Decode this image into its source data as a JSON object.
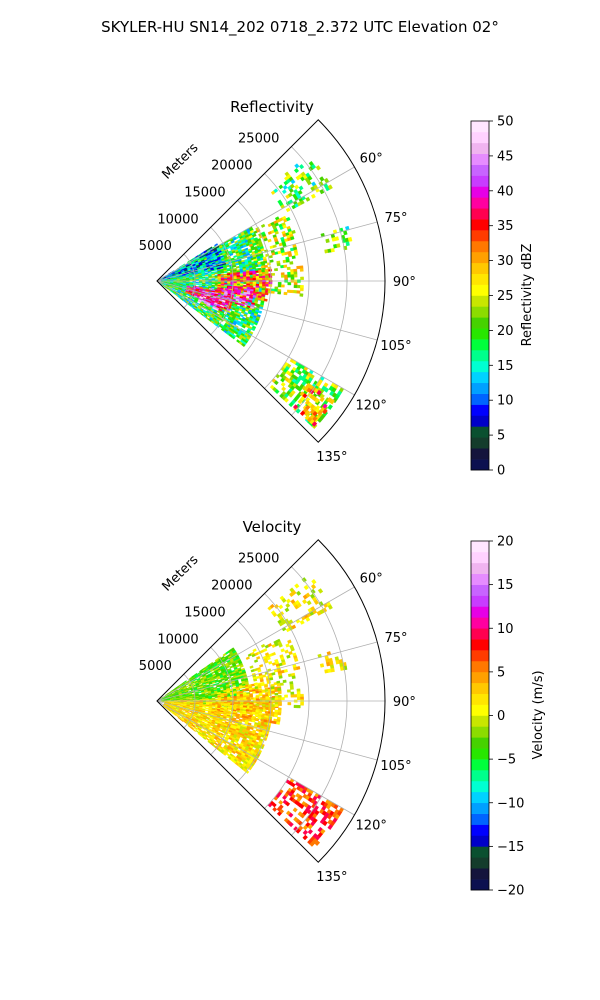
{
  "figure": {
    "suptitle": "SKYLER-HU  SN14_202  0718_2.372 UTC Elevation 02°"
  },
  "chart_data": [
    {
      "type": "heatmap",
      "projection": "polar-sector",
      "title": "Reflectivity",
      "radial_axis_label": "Meters",
      "radial_range": [
        0,
        30000
      ],
      "radial_ticks": [
        5000,
        10000,
        15000,
        20000,
        25000
      ],
      "radial_tick_labels": [
        "5000",
        "10000",
        "15000",
        "20000",
        "25000"
      ],
      "angle_range_deg": [
        45,
        135
      ],
      "angle_ticks_deg": [
        60,
        75,
        90,
        105,
        120,
        135
      ],
      "angle_tick_labels": [
        "60°",
        "75°",
        "90°",
        "105°",
        "120°",
        "135°"
      ],
      "grid": true,
      "colorbar": {
        "label": "Reflectivity dBZ",
        "range": [
          0,
          50
        ],
        "ticks": [
          0,
          5,
          10,
          15,
          20,
          25,
          30,
          35,
          40,
          45,
          50
        ],
        "tick_labels": [
          "0",
          "5",
          "10",
          "15",
          "20",
          "25",
          "30",
          "35",
          "40",
          "45",
          "50"
        ],
        "colors": [
          "#0c1050",
          "#14143c",
          "#143c2c",
          "#0a5030",
          "#0000c8",
          "#0000ff",
          "#0064ff",
          "#00a0ff",
          "#00d2ff",
          "#00ffd2",
          "#00ff8c",
          "#00ff3c",
          "#28e600",
          "#46d200",
          "#8cdc00",
          "#c8e600",
          "#ffff00",
          "#ffe600",
          "#ffc800",
          "#ffa000",
          "#ff7800",
          "#ff3c00",
          "#ff0000",
          "#ff0050",
          "#ff00a0",
          "#e600e6",
          "#c83cff",
          "#c864ff",
          "#e68cff",
          "#f0b4f0",
          "#ffd2ff",
          "#ffe6ff"
        ]
      },
      "field_regions": [
        {
          "r": [
            500,
            14000
          ],
          "angle": [
            60,
            126
          ],
          "value": 18,
          "density": 0.85
        },
        {
          "r": [
            500,
            9000
          ],
          "angle": [
            58,
            78
          ],
          "value": 12,
          "density": 0.8
        },
        {
          "r": [
            8000,
            15000
          ],
          "angle": [
            84,
            100
          ],
          "value": 33,
          "density": 0.7
        },
        {
          "r": [
            4000,
            10000
          ],
          "angle": [
            98,
            112
          ],
          "value": 38,
          "density": 0.75
        },
        {
          "r": [
            6000,
            9000
          ],
          "angle": [
            104,
            116
          ],
          "value": 42,
          "density": 0.6
        },
        {
          "r": [
            9000,
            13000
          ],
          "angle": [
            94,
            106
          ],
          "value": 40,
          "density": 0.55
        },
        {
          "r": [
            13000,
            19000
          ],
          "angle": [
            62,
            96
          ],
          "value": 24,
          "density": 0.35
        },
        {
          "r": [
            19000,
            26000
          ],
          "angle": [
            50,
            62
          ],
          "value": 20,
          "density": 0.35
        },
        {
          "r": [
            20000,
            28000
          ],
          "angle": [
            120,
            133
          ],
          "value": 22,
          "density": 0.5
        },
        {
          "r": [
            24000,
            28000
          ],
          "angle": [
            124,
            132
          ],
          "value": 32,
          "density": 0.5
        },
        {
          "r": [
            22000,
            26000
          ],
          "angle": [
            74,
            80
          ],
          "value": 20,
          "density": 0.3
        }
      ]
    },
    {
      "type": "heatmap",
      "projection": "polar-sector",
      "title": "Velocity",
      "radial_axis_label": "Meters",
      "radial_range": [
        0,
        30000
      ],
      "radial_ticks": [
        5000,
        10000,
        15000,
        20000,
        25000
      ],
      "radial_tick_labels": [
        "5000",
        "10000",
        "15000",
        "20000",
        "25000"
      ],
      "angle_range_deg": [
        45,
        135
      ],
      "angle_ticks_deg": [
        60,
        75,
        90,
        105,
        120,
        135
      ],
      "angle_tick_labels": [
        "60°",
        "75°",
        "90°",
        "105°",
        "120°",
        "135°"
      ],
      "grid": true,
      "colorbar": {
        "label": "Velocity (m/s)",
        "range": [
          -20,
          20
        ],
        "ticks": [
          -20,
          -15,
          -10,
          -5,
          0,
          5,
          10,
          15,
          20
        ],
        "tick_labels": [
          "−20",
          "−15",
          "−10",
          "−5",
          "0",
          "5",
          "10",
          "15",
          "20"
        ],
        "colors": [
          "#0c1050",
          "#14143c",
          "#143c2c",
          "#0a5030",
          "#0000c8",
          "#0000ff",
          "#0064ff",
          "#00a0ff",
          "#00d2ff",
          "#00ffd2",
          "#00ff8c",
          "#00ff3c",
          "#28e600",
          "#46d200",
          "#8cdc00",
          "#c8e600",
          "#ffff00",
          "#ffe600",
          "#ffc800",
          "#ffa000",
          "#ff7800",
          "#ff3c00",
          "#ff0000",
          "#ff0050",
          "#ff00a0",
          "#e600e6",
          "#c83cff",
          "#c864ff",
          "#e68cff",
          "#f0b4f0",
          "#ffd2ff",
          "#ffe6ff"
        ]
      },
      "field_regions": [
        {
          "r": [
            500,
            12000
          ],
          "angle": [
            55,
            95
          ],
          "value": -3,
          "density": 0.85
        },
        {
          "r": [
            1000,
            15000
          ],
          "angle": [
            88,
            128
          ],
          "value": 2,
          "density": 0.85
        },
        {
          "r": [
            8000,
            16000
          ],
          "angle": [
            80,
            100
          ],
          "value": 3,
          "density": 0.6
        },
        {
          "r": [
            13000,
            19000
          ],
          "angle": [
            62,
            92
          ],
          "value": 1,
          "density": 0.35
        },
        {
          "r": [
            19000,
            26000
          ],
          "angle": [
            50,
            62
          ],
          "value": 1,
          "density": 0.35
        },
        {
          "r": [
            20000,
            28000
          ],
          "angle": [
            120,
            133
          ],
          "value": 7,
          "density": 0.55
        },
        {
          "r": [
            22000,
            26000
          ],
          "angle": [
            74,
            80
          ],
          "value": 1,
          "density": 0.3
        }
      ]
    }
  ]
}
